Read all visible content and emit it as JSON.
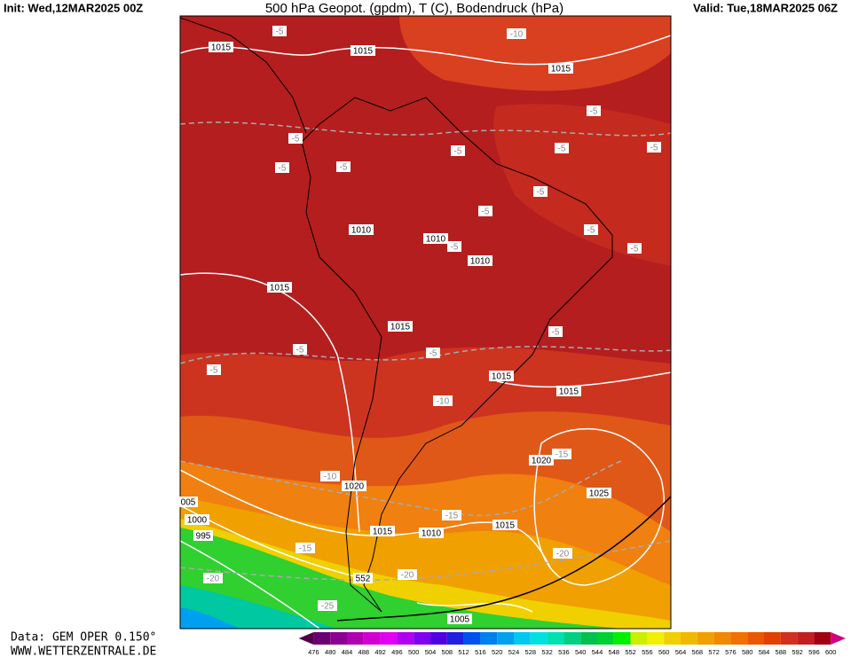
{
  "header": {
    "init": "Init: Wed,12MAR2025 00Z",
    "title": "500 hPa Geopot. (gpdm), T (C), Bodendruck (hPa)",
    "valid": "Valid: Tue,18MAR2025 06Z"
  },
  "footer": {
    "data": "Data: GEM OPER 0.150°",
    "site": "WWW.WETTERZENTRALE.DE"
  },
  "colorbar": {
    "labels": [
      476,
      480,
      484,
      488,
      492,
      496,
      500,
      504,
      508,
      512,
      516,
      520,
      524,
      528,
      532,
      536,
      540,
      544,
      548,
      552,
      556,
      560,
      564,
      568,
      572,
      576,
      580,
      584,
      588,
      592,
      596,
      600
    ],
    "colors": [
      "#500048",
      "#6a0070",
      "#8a0090",
      "#b000b0",
      "#d000d0",
      "#e000f0",
      "#b000f0",
      "#8000f0",
      "#5000e0",
      "#2020e0",
      "#0050f0",
      "#0080f0",
      "#00a0f0",
      "#00c8f0",
      "#00e0e0",
      "#00e0b0",
      "#00d080",
      "#00c050",
      "#00d030",
      "#00f000",
      "#c8f000",
      "#f0f000",
      "#f0d000",
      "#f0b800",
      "#f0a000",
      "#f08800",
      "#f07000",
      "#e85800",
      "#e04000",
      "#d03020",
      "#c02020",
      "#a00010",
      "#d00080"
    ]
  },
  "map_labels": [
    "1015",
    "-5",
    "1015",
    "-10",
    "1015",
    "-5",
    "-5",
    "-5",
    "-5",
    "-5",
    "-5",
    "-5",
    "-5",
    "-5",
    "1010",
    "1010",
    "-5",
    "-5",
    "-5",
    "1010",
    "1015",
    "1015",
    "-5",
    "-5",
    "-5",
    "-5",
    "1015",
    "1015",
    "-10",
    "1020",
    "-15",
    "-10",
    "1020",
    "1025",
    "005",
    "1000",
    "-15",
    "1015",
    "995",
    "1015",
    "1010",
    "-15",
    "-20",
    "-20",
    "-20",
    "552",
    "-25",
    "1005"
  ]
}
